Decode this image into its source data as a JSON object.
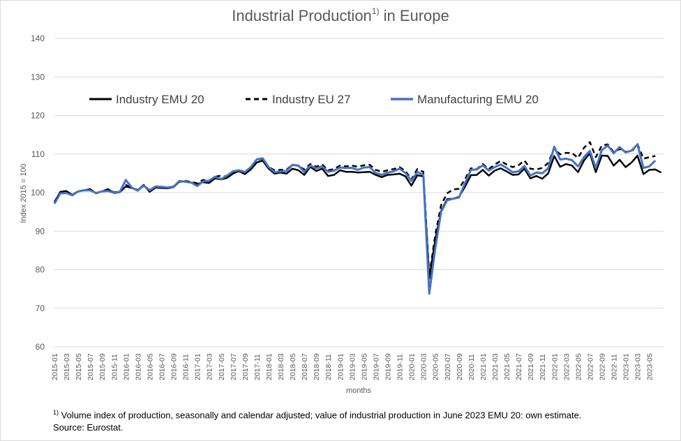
{
  "title": {
    "main": "Industrial Production",
    "sup": "1)",
    "suffix": " in Europe"
  },
  "footnote": {
    "marker": "1)",
    "text": " Volume index of production, seasonally and calendar adjusted; value of industrial production in June 2023 EMU 20: own estimate.",
    "source": "Source: Eurostat."
  },
  "chart_data": {
    "type": "line",
    "title": "Industrial Production1) in Europe",
    "xlabel": "months",
    "ylabel": "Index 2015 = 100",
    "ylim": [
      60,
      140
    ],
    "yticks": [
      60,
      70,
      80,
      90,
      100,
      110,
      120,
      130,
      140
    ],
    "grid": true,
    "legend_position": "top",
    "x_tick_labels": [
      "2015-01",
      "2015-03",
      "2015-05",
      "2015-07",
      "2015-09",
      "2015-11",
      "2016-01",
      "2016-03",
      "2016-05",
      "2016-07",
      "2016-09",
      "2016-11",
      "2017-01",
      "2017-03",
      "2017-05",
      "2017-07",
      "2017-09",
      "2017-11",
      "2018-01",
      "2018-03",
      "2018-05",
      "2018-07",
      "2018-09",
      "2018-11",
      "2019-01",
      "2019-03",
      "2019-05",
      "2019-07",
      "2019-09",
      "2019-11",
      "2020-01",
      "2020-03",
      "2020-05",
      "2020-07",
      "2020-09",
      "2020-11",
      "2021-01",
      "2021-03",
      "2021-05",
      "2021-07",
      "2021-09",
      "2021-11",
      "2022-01",
      "2022-03",
      "2022-05",
      "2022-07",
      "2022-09",
      "2022-11",
      "2023-01",
      "2023-03",
      "2023-05"
    ],
    "x_start": "2015-01",
    "series": [
      {
        "name": "Industry EMU 20",
        "color": "#000000",
        "style": "solid",
        "values": [
          97.5,
          100.2,
          100.4,
          99.4,
          100.3,
          100.6,
          100.9,
          99.8,
          100.3,
          100.9,
          99.9,
          100.1,
          101.6,
          101.2,
          100.6,
          102.0,
          100.2,
          101.3,
          101.2,
          101.1,
          101.4,
          102.8,
          102.9,
          102.6,
          102.2,
          102.7,
          102.5,
          103.7,
          103.4,
          103.8,
          104.9,
          105.6,
          104.8,
          106.0,
          107.8,
          108.3,
          106.2,
          104.9,
          105.2,
          104.9,
          106.2,
          105.8,
          104.6,
          106.7,
          105.6,
          106.2,
          104.3,
          104.6,
          105.8,
          105.4,
          105.4,
          105.2,
          105.3,
          105.4,
          104.6,
          104.0,
          104.6,
          104.7,
          104.9,
          104.2,
          101.8,
          104.5,
          104.2,
          77.7,
          87.6,
          95.3,
          98.3,
          98.4,
          98.9,
          101.5,
          104.5,
          104.6,
          105.9,
          104.4,
          105.7,
          106.3,
          105.5,
          104.6,
          104.7,
          106.2,
          103.7,
          104.3,
          103.6,
          105.0,
          109.5,
          106.7,
          107.4,
          107.0,
          105.3,
          108.3,
          110.2,
          105.3,
          109.6,
          109.5,
          107.0,
          108.5,
          106.6,
          107.8,
          109.6,
          104.8,
          105.9,
          106.0,
          105.2
        ]
      },
      {
        "name": "Industry EU 27",
        "color": "#000000",
        "style": "dashed",
        "values": [
          97.6,
          100.0,
          100.3,
          99.4,
          100.4,
          100.6,
          100.8,
          99.9,
          100.3,
          100.8,
          100.1,
          100.3,
          102.0,
          101.2,
          100.7,
          101.9,
          100.6,
          101.6,
          101.4,
          101.2,
          101.6,
          103.0,
          103.0,
          102.8,
          102.4,
          103.3,
          103.0,
          104.1,
          104.4,
          104.1,
          105.2,
          105.8,
          105.4,
          106.4,
          108.5,
          108.8,
          106.6,
          105.8,
          105.9,
          105.9,
          107.3,
          106.9,
          106.0,
          107.4,
          106.7,
          107.3,
          105.8,
          106.1,
          107.0,
          106.8,
          107.0,
          106.7,
          107.1,
          107.2,
          105.9,
          105.4,
          105.8,
          106.1,
          106.6,
          105.6,
          103.4,
          106.1,
          105.4,
          78.3,
          88.9,
          96.8,
          99.8,
          100.8,
          101.0,
          103.5,
          106.3,
          106.1,
          107.4,
          106.1,
          107.3,
          108.2,
          107.3,
          106.6,
          107.1,
          108.3,
          106.2,
          106.0,
          106.4,
          107.7,
          111.5,
          109.9,
          110.3,
          110.3,
          109.0,
          111.6,
          113.1,
          109.2,
          112.2,
          112.5,
          110.5,
          111.3,
          110.6,
          110.6,
          112.6,
          108.8,
          109.2,
          109.5
        ]
      },
      {
        "name": "Manufacturing EMU 20",
        "color": "#4472c4",
        "style": "solid",
        "values": [
          97.1,
          99.8,
          99.9,
          99.3,
          100.3,
          100.6,
          100.6,
          99.9,
          100.3,
          100.4,
          100.0,
          100.2,
          103.3,
          101.3,
          100.5,
          101.8,
          100.6,
          101.6,
          101.5,
          101.3,
          101.5,
          103.0,
          102.8,
          102.6,
          101.7,
          102.9,
          103.1,
          104.1,
          103.5,
          104.4,
          105.5,
          105.8,
          105.3,
          106.6,
          108.6,
          108.9,
          106.6,
          105.3,
          105.5,
          105.6,
          107.2,
          107.0,
          105.4,
          107.0,
          106.3,
          106.8,
          105.4,
          105.7,
          106.5,
          106.4,
          106.4,
          105.9,
          106.5,
          106.6,
          105.1,
          104.6,
          105.2,
          105.5,
          106.2,
          105.1,
          103.0,
          105.4,
          104.5,
          73.8,
          85.4,
          95.0,
          98.0,
          98.4,
          98.7,
          102.4,
          105.9,
          106.0,
          107.1,
          105.7,
          106.6,
          107.3,
          106.4,
          105.3,
          105.5,
          106.9,
          104.4,
          105.2,
          105.0,
          106.3,
          111.9,
          108.6,
          108.8,
          108.4,
          106.8,
          109.2,
          110.8,
          106.4,
          111.0,
          112.2,
          110.2,
          111.8,
          110.4,
          110.9,
          112.5,
          106.4,
          106.8,
          108.3
        ]
      }
    ]
  }
}
